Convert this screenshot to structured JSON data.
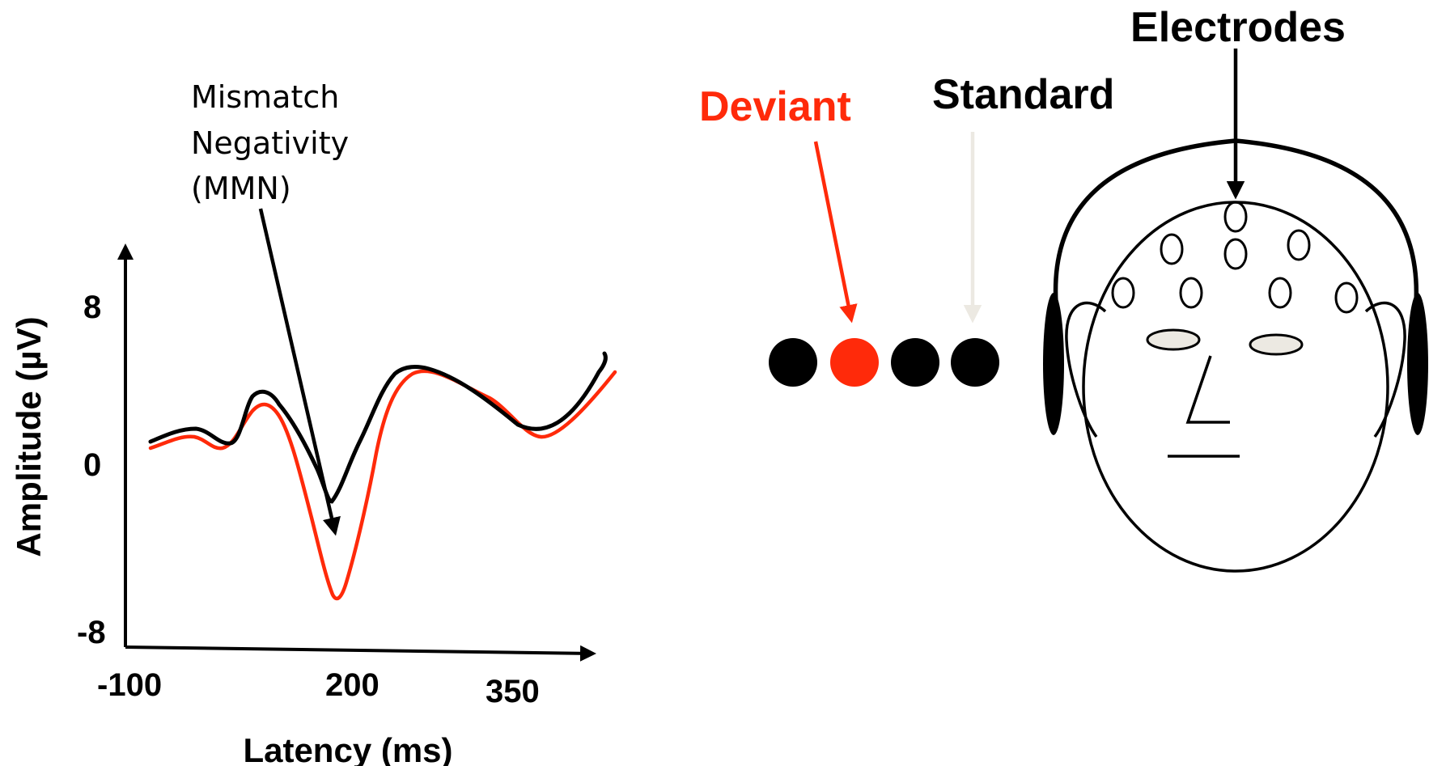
{
  "erp_plot": {
    "annotation": [
      "Mismatch",
      "Negativity",
      "(MMN)"
    ],
    "y_axis_label": "Amplitude (µV)",
    "x_axis_label": "Latency (ms)",
    "y_ticks": [
      "8",
      "0",
      "-8"
    ],
    "x_ticks": [
      "-100",
      "200",
      "350"
    ],
    "deviant_color": "#ff2a0a",
    "standard_color": "#000000"
  },
  "stimulus": {
    "deviant_label": "Deviant",
    "standard_label": "Standard",
    "deviant_color": "#ff2a0a",
    "standard_arrow_color": "#ece9e2",
    "sequence": [
      "standard",
      "deviant",
      "standard",
      "standard"
    ]
  },
  "head": {
    "electrodes_label": "Electrodes",
    "eye_fill": "#ece9e2"
  }
}
